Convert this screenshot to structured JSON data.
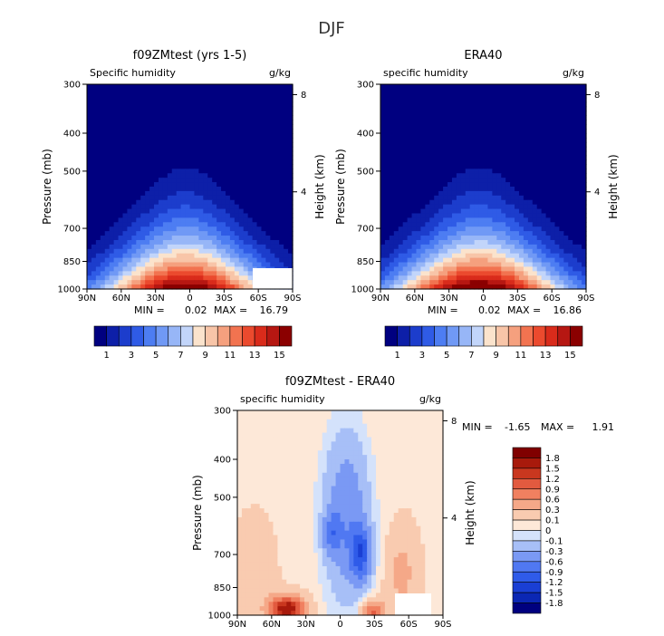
{
  "figure": {
    "title": "DJF"
  },
  "colors": {
    "full": [
      "#000080",
      "#0d1fa8",
      "#1c3dcc",
      "#2f5be6",
      "#4d7df2",
      "#7099f5",
      "#97b6f7",
      "#c2d5fa",
      "#fbe3cc",
      "#f8c5a8",
      "#f5a07e",
      "#f27350",
      "#eb4a2e",
      "#d92b1b",
      "#b61712",
      "#8b0000"
    ],
    "diff": [
      "#00007f",
      "#0b27b4",
      "#1a3fd4",
      "#2f5be9",
      "#5078f2",
      "#7a99f4",
      "#a7bff7",
      "#d4e2fb",
      "#fde8d8",
      "#f9cbb0",
      "#f5a888",
      "#f08060",
      "#e25a3f",
      "#c9371f",
      "#a81a0c",
      "#800000"
    ]
  },
  "chart_data": [
    {
      "type": "contour",
      "title": "f09ZMtest (yrs 1-5)",
      "variable_label": "Specific humidity",
      "units_label": "g/kg",
      "xlabel": "",
      "ylabel": "Pressure (mb)",
      "y2label": "Height (km)",
      "x_ticks": [
        "90N",
        "60N",
        "30N",
        "0",
        "30S",
        "60S",
        "90S"
      ],
      "y_ticks": [
        "300",
        "400",
        "500",
        "700",
        "850",
        "1000"
      ],
      "y2_ticks": [
        "8",
        "4"
      ],
      "stats": {
        "min_label": "MIN =",
        "min": "0.02",
        "max_label": "MAX =",
        "max": "16.79"
      },
      "colorbar_labels": [
        "1",
        "3",
        "5",
        "7",
        "9",
        "11",
        "13",
        "15"
      ],
      "contour_levels": [
        0,
        1,
        2,
        3,
        4,
        5,
        6,
        7,
        8,
        9,
        10,
        11,
        12,
        13,
        14,
        15,
        16
      ]
    },
    {
      "type": "contour",
      "title": "ERA40",
      "variable_label": "specific humidity",
      "units_label": "g/kg",
      "xlabel": "",
      "ylabel": "Pressure (mb)",
      "y2label": "Height (km)",
      "x_ticks": [
        "90N",
        "60N",
        "30N",
        "0",
        "30S",
        "60S",
        "90S"
      ],
      "y_ticks": [
        "300",
        "400",
        "500",
        "700",
        "850",
        "1000"
      ],
      "y2_ticks": [
        "8",
        "4"
      ],
      "stats": {
        "min_label": "MIN =",
        "min": "0.02",
        "max_label": "MAX =",
        "max": "16.86"
      },
      "colorbar_labels": [
        "1",
        "3",
        "5",
        "7",
        "9",
        "11",
        "13",
        "15"
      ],
      "contour_levels": [
        0,
        1,
        2,
        3,
        4,
        5,
        6,
        7,
        8,
        9,
        10,
        11,
        12,
        13,
        14,
        15,
        16
      ]
    },
    {
      "type": "contour",
      "title": "f09ZMtest - ERA40",
      "variable_label": "specific humidity",
      "units_label": "g/kg",
      "xlabel": "",
      "ylabel": "Pressure (mb)",
      "y2label": "Height (km)",
      "x_ticks": [
        "90N",
        "60N",
        "30N",
        "0",
        "30S",
        "60S",
        "90S"
      ],
      "y_ticks": [
        "300",
        "400",
        "500",
        "700",
        "850",
        "1000"
      ],
      "y2_ticks": [
        "8",
        "4"
      ],
      "stats": {
        "min_label": "MIN =",
        "min": "-1.65",
        "max_label": "MAX =",
        "max": "1.91"
      },
      "colorbar_labels": [
        "1.8",
        "1.5",
        "1.2",
        "0.9",
        "0.6",
        "0.3",
        "0.1",
        "0",
        "-0.1",
        "-0.3",
        "-0.6",
        "-0.9",
        "-1.2",
        "-1.5",
        "-1.8"
      ],
      "contour_levels": [
        -1.8,
        -1.5,
        -1.2,
        -0.9,
        -0.6,
        -0.3,
        -0.1,
        0,
        0.1,
        0.3,
        0.6,
        0.9,
        1.2,
        1.5,
        1.8
      ]
    }
  ]
}
